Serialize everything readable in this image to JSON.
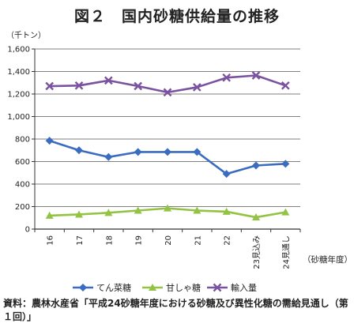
{
  "chart_data": {
    "type": "line",
    "title": "図２　国内砂糖供給量の推移",
    "unit_label": "（千トン）",
    "xlabel": "（砂糖年度）",
    "ylabel": "",
    "ylim": [
      0,
      1600
    ],
    "yticks": [
      "0",
      "200",
      "400",
      "600",
      "800",
      "1,000",
      "1,200",
      "1,400",
      "1,600"
    ],
    "categories": [
      "16",
      "17",
      "18",
      "19",
      "20",
      "21",
      "22",
      "23見込み",
      "24見通し"
    ],
    "series": [
      {
        "name": "てん菜糖",
        "color": "#3a6cc0",
        "marker": "diamond",
        "values": [
          785,
          700,
          640,
          685,
          685,
          685,
          490,
          565,
          580
        ]
      },
      {
        "name": "甘しゃ糖",
        "color": "#93c342",
        "marker": "triangle",
        "values": [
          120,
          130,
          145,
          165,
          185,
          165,
          155,
          105,
          150
        ]
      },
      {
        "name": "輸入量",
        "color": "#7a52a0",
        "marker": "x",
        "values": [
          1270,
          1275,
          1320,
          1270,
          1215,
          1260,
          1345,
          1365,
          1275
        ]
      }
    ],
    "grid": "horizontal",
    "legend_position": "bottom"
  },
  "source_note": "資料：農林水産省「平成24砂糖年度における砂糖及び異性化糖の需給見通し（第１回）」"
}
